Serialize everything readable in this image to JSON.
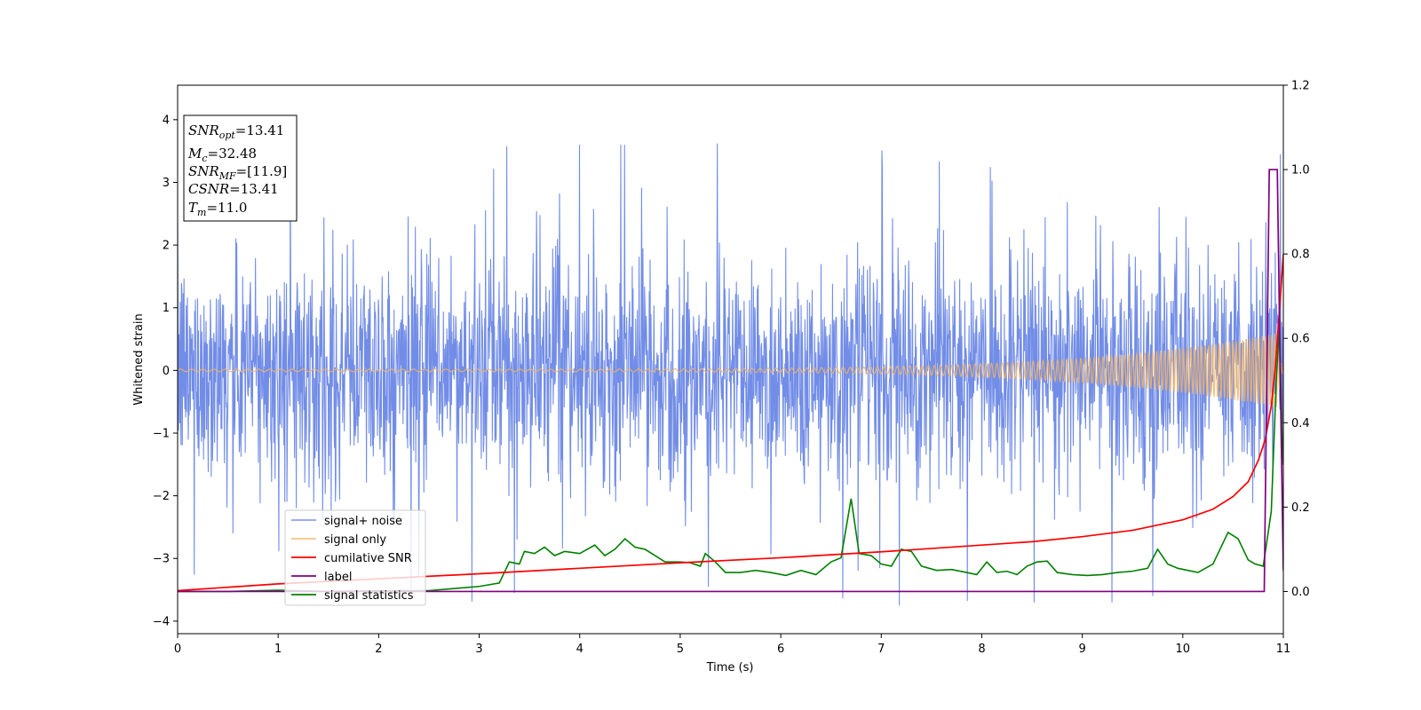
{
  "chart_data": {
    "type": "line",
    "xlabel": "Time (s)",
    "ylabel": "Whitened strain",
    "xlim": [
      0,
      11
    ],
    "ylim_left": [
      -4.2,
      4.55
    ],
    "ylim_right": [
      -0.1,
      1.2
    ],
    "x_ticks": [
      0,
      1,
      2,
      3,
      4,
      5,
      6,
      7,
      8,
      9,
      10,
      11
    ],
    "y_ticks_left": [
      -4,
      -3,
      -2,
      -1,
      0,
      1,
      2,
      3,
      4
    ],
    "y_ticks_right": [
      0.0,
      0.2,
      0.4,
      0.6,
      0.8,
      1.0,
      1.2
    ],
    "grid": false,
    "legend_position": "lower-left",
    "colors": {
      "noise": "#6a87e6",
      "signal": "#f5b461",
      "csnr": "#ff0000",
      "label": "#800080",
      "stats": "#008000"
    },
    "annotation": [
      {
        "sym": "SNR",
        "sub": "opt",
        "value": "=13.41"
      },
      {
        "sym": "M",
        "sub": "c",
        "value": "=32.48"
      },
      {
        "sym": "SNR",
        "sub": "MF",
        "value": "=[11.9]"
      },
      {
        "sym": "CSNR",
        "sub": "",
        "value": "=13.41"
      },
      {
        "sym": "T",
        "sub": "m",
        "value": "=11.0"
      }
    ],
    "series": [
      {
        "name": "signal+ noise",
        "axis": "left",
        "summary": {
          "envelope_min": -3.7,
          "envelope_max": 3.6,
          "typical_abs": 1.5
        },
        "notable_spikes": [
          {
            "x": 0.55,
            "y": -2.6
          },
          {
            "x": 1.12,
            "y": 3.35
          },
          {
            "x": 3.35,
            "y": -3.55
          },
          {
            "x": 5.37,
            "y": 3.62
          },
          {
            "x": 5.28,
            "y": -3.45
          },
          {
            "x": 7.18,
            "y": -3.75
          },
          {
            "x": 9.7,
            "y": -3.6
          },
          {
            "x": 10.97,
            "y": 3.45
          }
        ]
      },
      {
        "name": "signal only",
        "axis": "left",
        "summary": {
          "amplitude_start": 0.02,
          "amplitude_end": 0.6,
          "ringdown_time": 10.95
        }
      },
      {
        "name": "cumilative SNR",
        "axis": "right",
        "points": [
          [
            0,
            0.002
          ],
          [
            1,
            0.018
          ],
          [
            2,
            0.03
          ],
          [
            3,
            0.042
          ],
          [
            4,
            0.055
          ],
          [
            5,
            0.068
          ],
          [
            6,
            0.08
          ],
          [
            7,
            0.094
          ],
          [
            8,
            0.11
          ],
          [
            8.5,
            0.118
          ],
          [
            9,
            0.13
          ],
          [
            9.5,
            0.145
          ],
          [
            10,
            0.17
          ],
          [
            10.3,
            0.195
          ],
          [
            10.5,
            0.225
          ],
          [
            10.65,
            0.26
          ],
          [
            10.75,
            0.31
          ],
          [
            10.82,
            0.36
          ],
          [
            10.88,
            0.44
          ],
          [
            10.92,
            0.53
          ],
          [
            10.95,
            0.63
          ],
          [
            10.98,
            0.73
          ],
          [
            11.0,
            0.8
          ]
        ]
      },
      {
        "name": "label",
        "axis": "right",
        "points": [
          [
            0,
            0
          ],
          [
            10.81,
            0
          ],
          [
            10.86,
            1.0
          ],
          [
            10.94,
            1.0
          ],
          [
            10.97,
            0.5
          ],
          [
            11.0,
            0.05
          ]
        ]
      },
      {
        "name": "signal statistics",
        "axis": "right",
        "points": [
          [
            0,
            0.0
          ],
          [
            0.5,
            0.0
          ],
          [
            1.0,
            0.003
          ],
          [
            1.5,
            0.0
          ],
          [
            2.0,
            0.002
          ],
          [
            2.5,
            0.002
          ],
          [
            2.8,
            0.008
          ],
          [
            3.0,
            0.012
          ],
          [
            3.2,
            0.02
          ],
          [
            3.3,
            0.07
          ],
          [
            3.4,
            0.065
          ],
          [
            3.45,
            0.095
          ],
          [
            3.55,
            0.09
          ],
          [
            3.65,
            0.105
          ],
          [
            3.75,
            0.085
          ],
          [
            3.85,
            0.095
          ],
          [
            4.0,
            0.09
          ],
          [
            4.15,
            0.11
          ],
          [
            4.25,
            0.085
          ],
          [
            4.35,
            0.1
          ],
          [
            4.45,
            0.125
          ],
          [
            4.55,
            0.105
          ],
          [
            4.65,
            0.1
          ],
          [
            4.75,
            0.085
          ],
          [
            4.85,
            0.07
          ],
          [
            5.0,
            0.07
          ],
          [
            5.1,
            0.068
          ],
          [
            5.2,
            0.06
          ],
          [
            5.25,
            0.09
          ],
          [
            5.35,
            0.07
          ],
          [
            5.45,
            0.045
          ],
          [
            5.6,
            0.045
          ],
          [
            5.75,
            0.05
          ],
          [
            5.9,
            0.045
          ],
          [
            6.05,
            0.038
          ],
          [
            6.2,
            0.05
          ],
          [
            6.35,
            0.04
          ],
          [
            6.5,
            0.07
          ],
          [
            6.6,
            0.08
          ],
          [
            6.7,
            0.22
          ],
          [
            6.78,
            0.09
          ],
          [
            6.9,
            0.085
          ],
          [
            7.0,
            0.065
          ],
          [
            7.1,
            0.06
          ],
          [
            7.2,
            0.1
          ],
          [
            7.3,
            0.095
          ],
          [
            7.4,
            0.06
          ],
          [
            7.55,
            0.05
          ],
          [
            7.7,
            0.052
          ],
          [
            7.85,
            0.045
          ],
          [
            7.95,
            0.04
          ],
          [
            8.05,
            0.07
          ],
          [
            8.15,
            0.045
          ],
          [
            8.25,
            0.048
          ],
          [
            8.35,
            0.04
          ],
          [
            8.45,
            0.06
          ],
          [
            8.55,
            0.07
          ],
          [
            8.65,
            0.072
          ],
          [
            8.75,
            0.045
          ],
          [
            8.9,
            0.04
          ],
          [
            9.05,
            0.038
          ],
          [
            9.2,
            0.04
          ],
          [
            9.35,
            0.045
          ],
          [
            9.5,
            0.048
          ],
          [
            9.65,
            0.055
          ],
          [
            9.75,
            0.1
          ],
          [
            9.85,
            0.065
          ],
          [
            9.95,
            0.055
          ],
          [
            10.05,
            0.05
          ],
          [
            10.15,
            0.045
          ],
          [
            10.3,
            0.065
          ],
          [
            10.45,
            0.14
          ],
          [
            10.55,
            0.125
          ],
          [
            10.65,
            0.075
          ],
          [
            10.72,
            0.065
          ],
          [
            10.8,
            0.06
          ],
          [
            10.88,
            0.19
          ],
          [
            10.93,
            0.5
          ],
          [
            10.96,
            0.63
          ],
          [
            10.99,
            0.35
          ],
          [
            11.0,
            0.3
          ]
        ]
      }
    ]
  }
}
